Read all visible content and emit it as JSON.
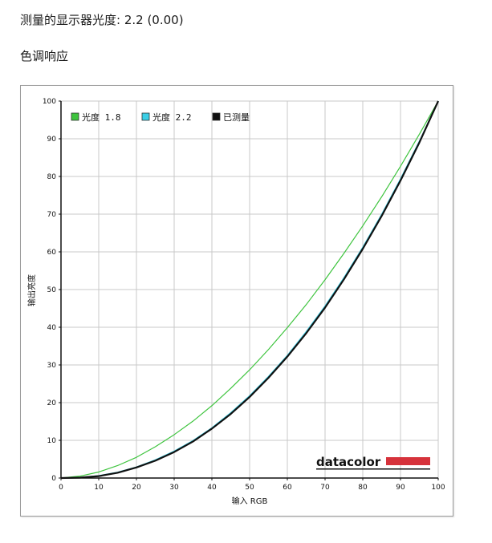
{
  "header": {
    "measured_gamma": "测量的显示器光度: 2.2 (0.00)",
    "section_title": "色调响应"
  },
  "logo": {
    "text": "datacolor",
    "bar_color": "#d6323b"
  },
  "chart_data": {
    "type": "line",
    "title": "",
    "xlabel": "输入 RGB",
    "ylabel": "输出亮度",
    "xlim": [
      0,
      100
    ],
    "ylim": [
      0,
      100
    ],
    "xticks": [
      0,
      10,
      20,
      30,
      40,
      50,
      60,
      70,
      80,
      90,
      100
    ],
    "yticks": [
      0,
      10,
      20,
      30,
      40,
      50,
      60,
      70,
      80,
      90,
      100
    ],
    "grid": true,
    "legend_position": "top-left",
    "series": [
      {
        "name": "光度 1.8",
        "color": "#3ec43e",
        "x": [
          0,
          5,
          10,
          15,
          20,
          25,
          30,
          35,
          40,
          45,
          50,
          55,
          60,
          65,
          70,
          75,
          80,
          85,
          90,
          95,
          100
        ],
        "y": [
          0,
          0.5,
          1.6,
          3.3,
          5.5,
          8.3,
          11.5,
          15.1,
          19.2,
          23.8,
          28.7,
          34.1,
          39.9,
          46.0,
          52.6,
          59.6,
          66.9,
          74.6,
          82.7,
          91.2,
          100
        ]
      },
      {
        "name": "光度 2.2",
        "color": "#3ccfe6",
        "x": [
          0,
          5,
          10,
          15,
          20,
          25,
          30,
          35,
          40,
          45,
          50,
          55,
          60,
          65,
          70,
          75,
          80,
          85,
          90,
          95,
          100
        ],
        "y": [
          0,
          0.1,
          0.6,
          1.5,
          2.9,
          4.8,
          7.1,
          9.9,
          13.3,
          17.3,
          21.8,
          26.9,
          32.5,
          38.8,
          45.6,
          53.1,
          61.2,
          69.9,
          79.3,
          89.3,
          100
        ]
      },
      {
        "name": "已测量",
        "color": "#111111",
        "x": [
          0,
          5,
          10,
          15,
          20,
          25,
          30,
          35,
          40,
          45,
          50,
          55,
          60,
          65,
          70,
          75,
          80,
          85,
          90,
          95,
          100
        ],
        "y": [
          0,
          0.1,
          0.5,
          1.4,
          2.8,
          4.6,
          6.9,
          9.7,
          13.1,
          17.0,
          21.5,
          26.6,
          32.2,
          38.4,
          45.2,
          52.7,
          60.8,
          69.5,
          78.9,
          89.0,
          100
        ]
      }
    ]
  }
}
